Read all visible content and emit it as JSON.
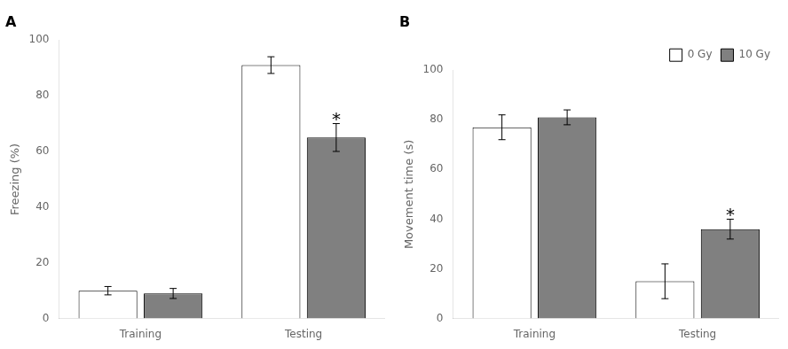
{
  "chart_data": [
    {
      "type": "bar",
      "title": "A",
      "categories": [
        "Training",
        "Testing"
      ],
      "series": [
        {
          "name": "0 Gy",
          "color": "#ffffff",
          "values": [
            10,
            91
          ],
          "errors": [
            1.5,
            3
          ]
        },
        {
          "name": "10 Gy",
          "color": "#808080",
          "values": [
            9,
            65
          ],
          "errors": [
            1.8,
            5
          ]
        }
      ],
      "ylabel": "Freezing (%)",
      "ylim": [
        0,
        100
      ],
      "yticks": [
        0,
        20,
        40,
        60,
        80,
        100
      ],
      "grid": false,
      "annotations": [
        {
          "text": "*",
          "category": "Testing",
          "series": "10 Gy"
        }
      ]
    },
    {
      "type": "bar",
      "title": "B",
      "categories": [
        "Training",
        "Testing"
      ],
      "series": [
        {
          "name": "0 Gy",
          "color": "#ffffff",
          "values": [
            77,
            15
          ],
          "errors": [
            5,
            7
          ]
        },
        {
          "name": "10 Gy",
          "color": "#808080",
          "values": [
            81,
            36
          ],
          "errors": [
            3,
            4
          ]
        }
      ],
      "ylabel": "Movement time (s)",
      "ylim": [
        0,
        100
      ],
      "yticks": [
        0,
        20,
        40,
        60,
        80,
        100
      ],
      "grid": false,
      "legend": "upper right",
      "annotations": [
        {
          "text": "*",
          "category": "Testing",
          "series": "10 Gy"
        }
      ]
    }
  ]
}
